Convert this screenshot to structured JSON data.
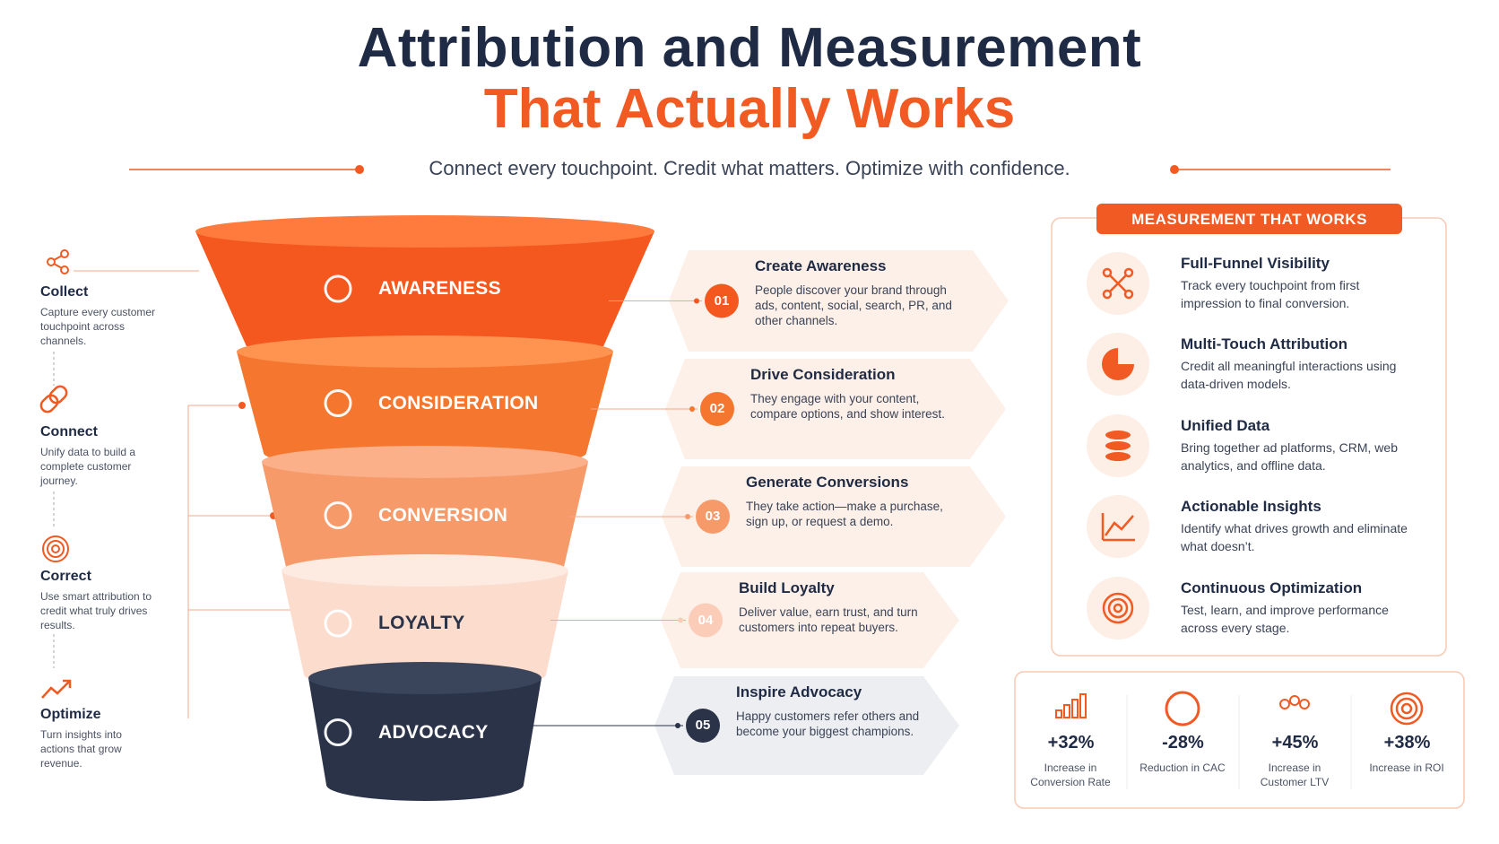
{
  "header": {
    "title_line1": "Attribution and Measurement",
    "title_line2": "That Actually Works",
    "subtitle": "Connect every touchpoint.  Credit what matters.  Optimize with confidence."
  },
  "steps": [
    {
      "label": "Collect",
      "description": "Capture every customer touchpoint across channels."
    },
    {
      "label": "Connect",
      "description": "Unify data to build a complete customer journey."
    },
    {
      "label": "Correct",
      "description": "Use smart attribution to credit what truly drives results."
    },
    {
      "label": "Optimize",
      "description": "Turn insights into actions that grow revenue."
    }
  ],
  "funnel": [
    {
      "stage": "AWARENESS",
      "number": "01",
      "title": "Create Awareness",
      "description": "People discover your brand through ads, content, social, search, PR, and other channels."
    },
    {
      "stage": "CONSIDERATION",
      "number": "02",
      "title": "Drive Consideration",
      "description": "They engage with your content, compare options, and show interest."
    },
    {
      "stage": "CONVERSION",
      "number": "03",
      "title": "Generate Conversions",
      "description": "They take action—make a purchase, sign up, or request a demo."
    },
    {
      "stage": "LOYALTY",
      "number": "04",
      "title": "Build Loyalty",
      "description": "Deliver value, earn trust, and turn customers into repeat buyers."
    },
    {
      "stage": "ADVOCACY",
      "number": "05",
      "title": "Inspire Advocacy",
      "description": "Happy customers refer others and become your biggest champions."
    }
  ],
  "measurement": {
    "title": "MEASUREMENT THAT WORKS",
    "items": [
      {
        "title": "Full-Funnel Visibility",
        "description": "Track every touchpoint from first impression to final conversion."
      },
      {
        "title": "Multi-Touch Attribution",
        "description": "Credit all meaningful interactions using data-driven models."
      },
      {
        "title": "Unified Data",
        "description": "Bring together ad platforms, CRM, web analytics, and offline data."
      },
      {
        "title": "Actionable Insights",
        "description": "Identify what drives growth and eliminate what doesn’t."
      },
      {
        "title": "Continuous Optimization",
        "description": "Test, learn, and improve performance across every stage."
      }
    ]
  },
  "stats": [
    {
      "value": "+32%",
      "label": "Increase in Conversion Rate"
    },
    {
      "value": "-28%",
      "label": "Reduction in CAC"
    },
    {
      "value": "+45%",
      "label": "Increase in Customer LTV"
    },
    {
      "value": "+38%",
      "label": "Increase in ROI"
    }
  ]
}
